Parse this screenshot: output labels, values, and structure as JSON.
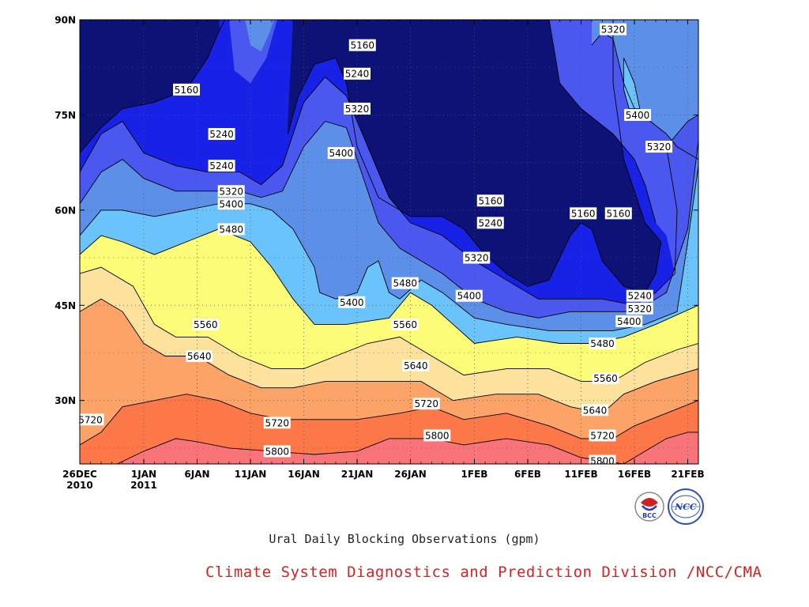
{
  "chart_data": {
    "type": "heatmap",
    "subtype": "filled-contour (Hovmöller time–latitude)",
    "title": "Ural Daily Blocking Observations (gpm)",
    "credit": "Climate System Diagnostics and Prediction Division /NCC/CMA",
    "logos": [
      "BCC",
      "NCC"
    ],
    "x_ticks": [
      {
        "day": 0,
        "label": "26DEC",
        "label2": "2010"
      },
      {
        "day": 6,
        "label": "1JAN",
        "label2": "2011"
      },
      {
        "day": 11,
        "label": "6JAN"
      },
      {
        "day": 16,
        "label": "11JAN"
      },
      {
        "day": 21,
        "label": "16JAN"
      },
      {
        "day": 26,
        "label": "21JAN"
      },
      {
        "day": 31,
        "label": "26JAN"
      },
      {
        "day": 37,
        "label": "1FEB"
      },
      {
        "day": 42,
        "label": "6FEB"
      },
      {
        "day": 47,
        "label": "11FEB"
      },
      {
        "day": 52,
        "label": "16FEB"
      },
      {
        "day": 57,
        "label": "21FEB"
      }
    ],
    "x_range": [
      0,
      58
    ],
    "y_ticks": [
      {
        "lat": 30,
        "label": "30N"
      },
      {
        "lat": 45,
        "label": "45N"
      },
      {
        "lat": 60,
        "label": "60N"
      },
      {
        "lat": 75,
        "label": "75N"
      },
      {
        "lat": 90,
        "label": "90N"
      }
    ],
    "y_range": [
      20,
      90
    ],
    "grid": true,
    "contour_levels": [
      5160,
      5240,
      5320,
      5400,
      5480,
      5560,
      5640,
      5720,
      5800
    ],
    "band_colors": [
      "#0d1277",
      "#1821e6",
      "#4b58f0",
      "#5b8fe8",
      "#6ac3fb",
      "#fcfc78",
      "#fce29c",
      "#fca368",
      "#fc7848",
      "#f87478"
    ],
    "contours": [
      {
        "level": 5800,
        "points": [
          [
            3.5,
            20
          ],
          [
            6,
            22
          ],
          [
            9,
            24
          ],
          [
            11,
            23.5
          ],
          [
            14,
            22.5
          ],
          [
            18,
            22
          ],
          [
            22,
            21.5
          ],
          [
            26,
            22
          ],
          [
            29,
            24
          ],
          [
            33,
            24
          ],
          [
            36,
            23
          ],
          [
            40,
            24
          ],
          [
            44,
            23
          ],
          [
            47,
            21
          ],
          [
            51,
            20
          ]
        ],
        "pts_end": [
          [
            51,
            20
          ],
          [
            53,
            22
          ],
          [
            55,
            24
          ],
          [
            57,
            25
          ],
          [
            58,
            25
          ]
        ]
      },
      {
        "level": 5720,
        "points": [
          [
            0,
            23
          ],
          [
            2,
            25
          ],
          [
            4,
            29
          ],
          [
            7,
            30
          ],
          [
            10,
            31
          ],
          [
            13,
            30
          ],
          [
            16,
            28
          ],
          [
            19,
            27
          ],
          [
            22,
            27
          ],
          [
            26,
            27
          ],
          [
            30,
            28
          ],
          [
            33,
            29
          ],
          [
            36,
            27
          ],
          [
            40,
            28
          ],
          [
            44,
            26
          ],
          [
            47,
            24
          ],
          [
            50,
            24
          ],
          [
            52,
            26
          ],
          [
            55,
            28
          ],
          [
            58,
            30
          ]
        ]
      },
      {
        "level": 5640,
        "points": [
          [
            0,
            44
          ],
          [
            2,
            46
          ],
          [
            4,
            44
          ],
          [
            6,
            39
          ],
          [
            8,
            37
          ],
          [
            11,
            37
          ],
          [
            14,
            34
          ],
          [
            17,
            32
          ],
          [
            20,
            32
          ],
          [
            23,
            33
          ],
          [
            26,
            33
          ],
          [
            29,
            33
          ],
          [
            32,
            33
          ],
          [
            35,
            30
          ],
          [
            39,
            31
          ],
          [
            43,
            31
          ],
          [
            46,
            29
          ],
          [
            49,
            28
          ],
          [
            51,
            31
          ],
          [
            54,
            33
          ],
          [
            58,
            35
          ]
        ]
      },
      {
        "level": 5560,
        "points": [
          [
            0,
            50
          ],
          [
            2,
            51
          ],
          [
            5,
            48
          ],
          [
            7,
            42
          ],
          [
            9,
            40
          ],
          [
            12,
            40
          ],
          [
            15,
            37
          ],
          [
            18,
            35
          ],
          [
            21,
            35
          ],
          [
            24,
            37
          ],
          [
            27,
            39
          ],
          [
            30,
            40
          ],
          [
            33,
            37
          ],
          [
            36,
            34
          ],
          [
            40,
            35
          ],
          [
            44,
            35
          ],
          [
            47,
            33
          ],
          [
            50,
            33
          ],
          [
            53,
            36
          ],
          [
            56,
            38
          ],
          [
            58,
            39
          ]
        ]
      },
      {
        "level": 5480,
        "points": [
          [
            0,
            53
          ],
          [
            2,
            56
          ],
          [
            4,
            55
          ],
          [
            7,
            53
          ],
          [
            10,
            55
          ],
          [
            13,
            57
          ],
          [
            16,
            55
          ],
          [
            18,
            51
          ],
          [
            20,
            46
          ],
          [
            22,
            42
          ],
          [
            25,
            42
          ],
          [
            29,
            43
          ],
          [
            31,
            47
          ],
          [
            33,
            45
          ],
          [
            35,
            42
          ],
          [
            37,
            39
          ],
          [
            41,
            40
          ],
          [
            45,
            39
          ],
          [
            48,
            39
          ],
          [
            51,
            40
          ],
          [
            54,
            42
          ],
          [
            58,
            45
          ]
        ]
      },
      {
        "level": 5400,
        "points": [
          [
            0,
            56
          ],
          [
            2,
            60
          ],
          [
            4,
            60
          ],
          [
            7,
            59
          ],
          [
            10,
            60
          ],
          [
            13,
            61
          ],
          [
            16,
            61
          ],
          [
            18,
            60
          ],
          [
            20,
            57
          ],
          [
            22,
            51
          ],
          [
            22.5,
            47
          ],
          [
            24,
            46
          ],
          [
            26,
            47
          ],
          [
            27,
            51
          ],
          [
            28,
            52
          ],
          [
            29,
            47
          ],
          [
            30,
            46
          ],
          [
            32,
            49
          ],
          [
            34,
            47
          ],
          [
            37,
            43
          ],
          [
            40,
            42
          ],
          [
            44,
            41
          ],
          [
            47,
            41
          ],
          [
            50,
            41
          ],
          [
            53,
            42
          ],
          [
            56,
            44
          ],
          [
            57,
            55
          ],
          [
            58,
            67
          ]
        ]
      },
      {
        "level": 5320,
        "points": [
          [
            0,
            61
          ],
          [
            2,
            66
          ],
          [
            4,
            68
          ],
          [
            6,
            65
          ],
          [
            9,
            63
          ],
          [
            12,
            63
          ],
          [
            15,
            63
          ],
          [
            17,
            62
          ],
          [
            19,
            63
          ],
          [
            21,
            70
          ],
          [
            23,
            74
          ],
          [
            25,
            73
          ],
          [
            26,
            68
          ],
          [
            28,
            58
          ],
          [
            30,
            54
          ],
          [
            32,
            52
          ],
          [
            34,
            50
          ],
          [
            37,
            46
          ],
          [
            40,
            44
          ],
          [
            43,
            43
          ],
          [
            46,
            44
          ],
          [
            49,
            44
          ],
          [
            52,
            44
          ],
          [
            55,
            47
          ],
          [
            57,
            57
          ],
          [
            58,
            71
          ]
        ]
      },
      {
        "level": 5240,
        "points": [
          [
            0,
            66
          ],
          [
            2,
            72
          ],
          [
            4,
            74
          ],
          [
            6,
            69
          ],
          [
            9,
            67
          ],
          [
            12,
            66
          ],
          [
            15,
            66
          ],
          [
            17,
            64
          ],
          [
            19,
            67
          ],
          [
            21,
            77
          ],
          [
            23,
            81
          ],
          [
            25,
            78
          ],
          [
            27,
            70
          ],
          [
            29,
            62
          ],
          [
            31,
            58
          ],
          [
            34,
            56
          ],
          [
            37,
            52
          ],
          [
            40,
            49
          ],
          [
            43,
            46
          ],
          [
            46,
            46
          ],
          [
            49,
            46
          ],
          [
            52,
            45
          ],
          [
            54,
            47
          ],
          [
            55.8,
            50
          ],
          [
            56,
            60
          ],
          [
            55,
            70
          ],
          [
            57,
            74
          ],
          [
            58,
            75
          ]
        ]
      },
      {
        "level": 5160,
        "points": [
          [
            0,
            69
          ],
          [
            2,
            73
          ],
          [
            4,
            76
          ],
          [
            7,
            77
          ],
          [
            10,
            79
          ],
          [
            12,
            84
          ],
          [
            13,
            88
          ],
          [
            13.6,
            90
          ]
        ]
      },
      {
        "level": 5160,
        "points": [
          [
            19.5,
            72
          ],
          [
            20.5,
            78
          ],
          [
            22,
            83
          ],
          [
            24,
            84
          ],
          [
            25,
            80
          ],
          [
            26,
            70
          ],
          [
            28,
            62
          ],
          [
            31,
            59
          ],
          [
            34,
            59
          ],
          [
            36,
            57
          ],
          [
            38,
            53
          ],
          [
            40,
            50
          ],
          [
            42,
            48
          ],
          [
            44,
            49
          ],
          [
            46,
            56
          ],
          [
            47,
            58
          ],
          [
            48,
            57
          ],
          [
            49,
            52
          ],
          [
            51,
            48
          ],
          [
            53,
            47
          ],
          [
            54,
            50
          ],
          [
            54.5,
            55
          ],
          [
            53,
            58
          ],
          [
            51,
            68
          ],
          [
            50,
            80
          ],
          [
            50,
            90
          ]
        ]
      },
      {
        "level": 5240,
        "points": [
          [
            44,
            90
          ],
          [
            44.5,
            85
          ],
          [
            45,
            80
          ],
          [
            47,
            76
          ],
          [
            50,
            72
          ],
          [
            52,
            68
          ],
          [
            53,
            64
          ],
          [
            54,
            58
          ]
        ]
      },
      {
        "level": 5320,
        "points": [
          [
            48,
            86
          ],
          [
            49,
            88
          ],
          [
            50,
            87
          ],
          [
            51,
            80
          ],
          [
            52,
            76
          ],
          [
            55,
            72
          ],
          [
            56,
            70
          ],
          [
            58,
            68
          ]
        ]
      },
      {
        "level": 5400,
        "points": [
          [
            51,
            84
          ],
          [
            52,
            80
          ],
          [
            52.5,
            76
          ],
          [
            51.5,
            76
          ],
          [
            51,
            79
          ],
          [
            51,
            84
          ]
        ]
      }
    ],
    "labels": [
      {
        "text": "5160",
        "day": 10,
        "lat": 79
      },
      {
        "text": "5240",
        "day": 13.3,
        "lat": 72
      },
      {
        "text": "5240",
        "day": 13.3,
        "lat": 67
      },
      {
        "text": "5320",
        "day": 14.2,
        "lat": 63
      },
      {
        "text": "5400",
        "day": 14.2,
        "lat": 61
      },
      {
        "text": "5480",
        "day": 14.2,
        "lat": 57
      },
      {
        "text": "5560",
        "day": 11.8,
        "lat": 42
      },
      {
        "text": "5640",
        "day": 11.2,
        "lat": 37
      },
      {
        "text": "5720",
        "day": 1,
        "lat": 27
      },
      {
        "text": "5720",
        "day": 18.5,
        "lat": 26.5
      },
      {
        "text": "5800",
        "day": 18.5,
        "lat": 22
      },
      {
        "text": "5160",
        "day": 26.5,
        "lat": 86
      },
      {
        "text": "5240",
        "day": 26,
        "lat": 81.5
      },
      {
        "text": "5320",
        "day": 26,
        "lat": 76
      },
      {
        "text": "5400",
        "day": 24.5,
        "lat": 69
      },
      {
        "text": "5400",
        "day": 25.5,
        "lat": 45.5
      },
      {
        "text": "5480",
        "day": 30.5,
        "lat": 48.5
      },
      {
        "text": "5560",
        "day": 30.5,
        "lat": 42
      },
      {
        "text": "5640",
        "day": 31.5,
        "lat": 35.5
      },
      {
        "text": "5720",
        "day": 32.5,
        "lat": 29.5
      },
      {
        "text": "5800",
        "day": 33.5,
        "lat": 24.5
      },
      {
        "text": "5160",
        "day": 38.5,
        "lat": 61.5
      },
      {
        "text": "5240",
        "day": 38.5,
        "lat": 58
      },
      {
        "text": "5320",
        "day": 37.2,
        "lat": 52.5
      },
      {
        "text": "5400",
        "day": 36.5,
        "lat": 46.5
      },
      {
        "text": "5160",
        "day": 47.2,
        "lat": 59.5
      },
      {
        "text": "5160",
        "day": 50.5,
        "lat": 59.5
      },
      {
        "text": "5320",
        "day": 50,
        "lat": 88.5
      },
      {
        "text": "5400",
        "day": 52.3,
        "lat": 75
      },
      {
        "text": "5320",
        "day": 54.3,
        "lat": 70
      },
      {
        "text": "5240",
        "day": 52.5,
        "lat": 46.5
      },
      {
        "text": "5320",
        "day": 52.5,
        "lat": 44.5
      },
      {
        "text": "5400",
        "day": 51.5,
        "lat": 42.5
      },
      {
        "text": "5480",
        "day": 49,
        "lat": 39
      },
      {
        "text": "5560",
        "day": 49.3,
        "lat": 33.5
      },
      {
        "text": "5640",
        "day": 48.3,
        "lat": 28.5
      },
      {
        "text": "5720",
        "day": 49,
        "lat": 24.5
      },
      {
        "text": "5800",
        "day": 49,
        "lat": 20.5
      }
    ]
  }
}
